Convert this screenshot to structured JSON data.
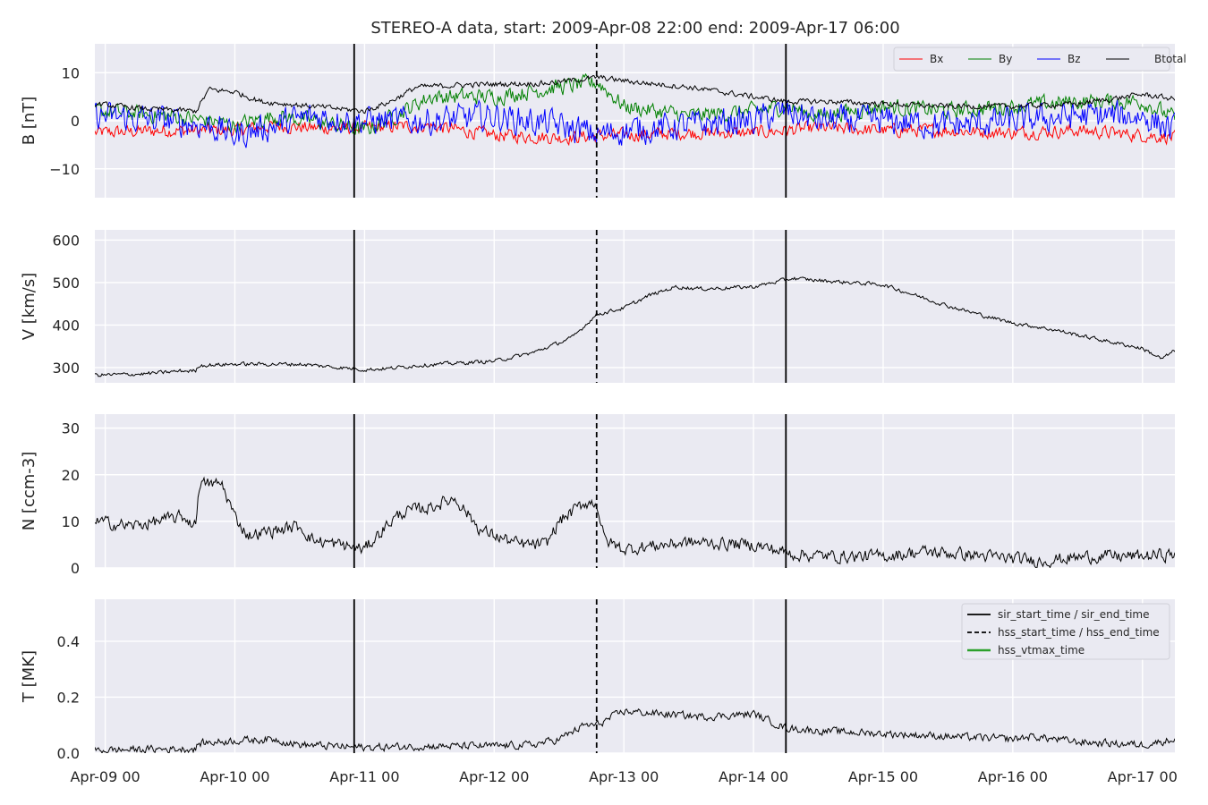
{
  "chart_data": {
    "type": "line",
    "title": "STEREO-A data, start: 2009-Apr-08 22:00  end: 2009-Apr-17 06:00",
    "x_unit": "days since 2009-Apr-09 00:00",
    "xlim": [
      -0.08,
      8.25
    ],
    "x_ticks": [
      {
        "x": 0,
        "label": "Apr-09 00"
      },
      {
        "x": 1,
        "label": "Apr-10 00"
      },
      {
        "x": 2,
        "label": "Apr-11 00"
      },
      {
        "x": 3,
        "label": "Apr-12 00"
      },
      {
        "x": 4,
        "label": "Apr-13 00"
      },
      {
        "x": 5,
        "label": "Apr-14 00"
      },
      {
        "x": 6,
        "label": "Apr-15 00"
      },
      {
        "x": 7,
        "label": "Apr-16 00"
      },
      {
        "x": 8,
        "label": "Apr-17 00"
      }
    ],
    "event_lines": [
      {
        "x": 1.92,
        "style": "solid",
        "label": "sir_start_time / sir_end_time"
      },
      {
        "x": 5.25,
        "style": "solid",
        "label": "sir_start_time / sir_end_time"
      },
      {
        "x": 3.79,
        "style": "dashed",
        "label": "hss_start_time / hss_end_time"
      }
    ],
    "panels": [
      {
        "ylabel": "B [nT]",
        "ylim": [
          -16,
          16
        ],
        "yticks": [
          {
            "v": 10,
            "label": "10"
          },
          {
            "v": 0,
            "label": "0"
          },
          {
            "v": -10,
            "label": "−10"
          }
        ],
        "legend": {
          "position": "top-right",
          "columns": 4
        },
        "series": [
          {
            "name": "Bx",
            "color": "#ff0000",
            "noise": 1.2,
            "points": [
              [
                -0.08,
                -2.5
              ],
              [
                0.5,
                -2
              ],
              [
                1,
                -2
              ],
              [
                1.3,
                -1
              ],
              [
                1.6,
                -1.5
              ],
              [
                2,
                -1.5
              ],
              [
                2.5,
                -1
              ],
              [
                3,
                -3
              ],
              [
                3.5,
                -3.5
              ],
              [
                4,
                -3
              ],
              [
                4.5,
                -2.5
              ],
              [
                5,
                -2.5
              ],
              [
                5.5,
                -1.5
              ],
              [
                6,
                -2
              ],
              [
                6.5,
                -2
              ],
              [
                7,
                -2.5
              ],
              [
                7.5,
                -2
              ],
              [
                8,
                -3
              ],
              [
                8.25,
                -3.5
              ]
            ]
          },
          {
            "name": "By",
            "color": "#008000",
            "noise": 1.5,
            "points": [
              [
                -0.08,
                2
              ],
              [
                0.5,
                1
              ],
              [
                0.8,
                0
              ],
              [
                1,
                -1
              ],
              [
                1.3,
                1
              ],
              [
                1.6,
                0
              ],
              [
                2,
                -2
              ],
              [
                2.3,
                2
              ],
              [
                2.5,
                5
              ],
              [
                3,
                5
              ],
              [
                3.5,
                7
              ],
              [
                3.8,
                8
              ],
              [
                4,
                3
              ],
              [
                4.5,
                1
              ],
              [
                5,
                2
              ],
              [
                5.25,
                3
              ],
              [
                5.5,
                1
              ],
              [
                6,
                3
              ],
              [
                6.5,
                2
              ],
              [
                7,
                3
              ],
              [
                7.5,
                4
              ],
              [
                8,
                4
              ],
              [
                8.25,
                0.5
              ]
            ]
          },
          {
            "name": "Bz",
            "color": "#0000ff",
            "noise": 2.6,
            "points": [
              [
                -0.08,
                1
              ],
              [
                0.5,
                0
              ],
              [
                0.8,
                -1
              ],
              [
                1,
                -3
              ],
              [
                1.3,
                -1
              ],
              [
                1.6,
                1
              ],
              [
                2,
                0
              ],
              [
                2.5,
                0
              ],
              [
                3,
                1
              ],
              [
                3.5,
                -1
              ],
              [
                3.8,
                -3
              ],
              [
                4,
                -2
              ],
              [
                4.5,
                -1
              ],
              [
                5,
                0
              ],
              [
                5.25,
                2
              ],
              [
                5.5,
                0
              ],
              [
                6,
                0
              ],
              [
                6.5,
                -1
              ],
              [
                7,
                0
              ],
              [
                7.5,
                1
              ],
              [
                8,
                1
              ],
              [
                8.25,
                -2
              ]
            ]
          },
          {
            "name": "Btotal",
            "color": "#000000",
            "noise": 0.5,
            "points": [
              [
                -0.08,
                3.5
              ],
              [
                0.3,
                2.5
              ],
              [
                0.7,
                2
              ],
              [
                0.8,
                6.5
              ],
              [
                1,
                6
              ],
              [
                1.2,
                4
              ],
              [
                1.6,
                3
              ],
              [
                2,
                2
              ],
              [
                2.2,
                4
              ],
              [
                2.4,
                7
              ],
              [
                2.8,
                7.5
              ],
              [
                3.4,
                7.8
              ],
              [
                3.8,
                9
              ],
              [
                4.1,
                8
              ],
              [
                4.5,
                7
              ],
              [
                5,
                5
              ],
              [
                5.25,
                4
              ],
              [
                5.6,
                4
              ],
              [
                6,
                3.5
              ],
              [
                6.5,
                3
              ],
              [
                7,
                3
              ],
              [
                7.5,
                3.5
              ],
              [
                8,
                5.5
              ],
              [
                8.25,
                4.5
              ]
            ]
          }
        ]
      },
      {
        "ylabel": "V [km/s]",
        "ylim": [
          264,
          624
        ],
        "yticks": [
          {
            "v": 300,
            "label": "300"
          },
          {
            "v": 400,
            "label": "400"
          },
          {
            "v": 500,
            "label": "500"
          },
          {
            "v": 600,
            "label": "600"
          }
        ],
        "series": [
          {
            "name": "V",
            "color": "#000000",
            "noise": 4,
            "points": [
              [
                -0.08,
                282
              ],
              [
                0.3,
                285
              ],
              [
                0.6,
                292
              ],
              [
                0.7,
                292
              ],
              [
                0.72,
                305
              ],
              [
                1,
                308
              ],
              [
                1.5,
                308
              ],
              [
                2,
                295
              ],
              [
                2.2,
                298
              ],
              [
                2.4,
                305
              ],
              [
                3,
                315
              ],
              [
                3.3,
                335
              ],
              [
                3.6,
                370
              ],
              [
                3.79,
                425
              ],
              [
                4,
                440
              ],
              [
                4.2,
                470
              ],
              [
                4.4,
                490
              ],
              [
                4.6,
                485
              ],
              [
                5,
                490
              ],
              [
                5.3,
                510
              ],
              [
                5.5,
                505
              ],
              [
                6,
                495
              ],
              [
                6.2,
                475
              ],
              [
                6.5,
                445
              ],
              [
                6.8,
                420
              ],
              [
                7,
                405
              ],
              [
                7.3,
                390
              ],
              [
                7.6,
                370
              ],
              [
                8,
                345
              ],
              [
                8.15,
                320
              ],
              [
                8.25,
                340
              ]
            ]
          }
        ]
      },
      {
        "ylabel": "N [ccm-3]",
        "ylim": [
          0,
          33
        ],
        "yticks": [
          {
            "v": 0,
            "label": "0"
          },
          {
            "v": 10,
            "label": "10"
          },
          {
            "v": 20,
            "label": "20"
          },
          {
            "v": 30,
            "label": "30"
          }
        ],
        "series": [
          {
            "name": "N",
            "color": "#000000",
            "noise": 1.2,
            "points": [
              [
                -0.08,
                10
              ],
              [
                0.2,
                9
              ],
              [
                0.4,
                10
              ],
              [
                0.6,
                11
              ],
              [
                0.7,
                9
              ],
              [
                0.72,
                18
              ],
              [
                0.9,
                18
              ],
              [
                1,
                11
              ],
              [
                1.1,
                7
              ],
              [
                1.5,
                9
              ],
              [
                1.6,
                6
              ],
              [
                1.9,
                4.5
              ],
              [
                2,
                4
              ],
              [
                2.2,
                10
              ],
              [
                2.3,
                12
              ],
              [
                2.5,
                13
              ],
              [
                2.7,
                15
              ],
              [
                2.9,
                8
              ],
              [
                3,
                7
              ],
              [
                3.2,
                5
              ],
              [
                3.4,
                5
              ],
              [
                3.5,
                10
              ],
              [
                3.7,
                14
              ],
              [
                3.79,
                14
              ],
              [
                3.85,
                6
              ],
              [
                4,
                4
              ],
              [
                4.3,
                5
              ],
              [
                4.5,
                5.5
              ],
              [
                5,
                5
              ],
              [
                5.3,
                3
              ],
              [
                5.6,
                2.5
              ],
              [
                6,
                2.5
              ],
              [
                6.3,
                3.5
              ],
              [
                6.6,
                3
              ],
              [
                7,
                2
              ],
              [
                7.2,
                1.5
              ],
              [
                7.6,
                2.5
              ],
              [
                8,
                2.5
              ],
              [
                8.25,
                3
              ]
            ]
          }
        ]
      },
      {
        "ylabel": "T [MK]",
        "ylim": [
          0,
          0.55
        ],
        "yticks": [
          {
            "v": 0,
            "label": "0.0"
          },
          {
            "v": 0.2,
            "label": "0.2"
          },
          {
            "v": 0.4,
            "label": "0.4"
          }
        ],
        "legend": {
          "position": "top-right",
          "columns": 1
        },
        "series": [
          {
            "name": "T",
            "color": "#000000",
            "noise": 0.012,
            "points": [
              [
                -0.08,
                0.01
              ],
              [
                0.5,
                0.015
              ],
              [
                0.7,
                0.015
              ],
              [
                0.72,
                0.035
              ],
              [
                1,
                0.045
              ],
              [
                1.3,
                0.05
              ],
              [
                1.5,
                0.03
              ],
              [
                2,
                0.02
              ],
              [
                2.5,
                0.025
              ],
              [
                3,
                0.025
              ],
              [
                3.3,
                0.03
              ],
              [
                3.5,
                0.05
              ],
              [
                3.7,
                0.1
              ],
              [
                3.79,
                0.1
              ],
              [
                4,
                0.15
              ],
              [
                4.3,
                0.14
              ],
              [
                4.6,
                0.13
              ],
              [
                5,
                0.14
              ],
              [
                5.25,
                0.09
              ],
              [
                5.5,
                0.08
              ],
              [
                6,
                0.07
              ],
              [
                6.5,
                0.06
              ],
              [
                7,
                0.05
              ],
              [
                7.15,
                0.06
              ],
              [
                7.5,
                0.04
              ],
              [
                8,
                0.03
              ],
              [
                8.25,
                0.05
              ]
            ]
          }
        ]
      }
    ],
    "legend_bottom": [
      {
        "label": "sir_start_time / sir_end_time",
        "color": "#000000",
        "style": "solid"
      },
      {
        "label": "hss_start_time / hss_end_time",
        "color": "#000000",
        "style": "dashed"
      },
      {
        "label": "hss_vtmax_time",
        "color": "#2ca02c",
        "style": "solid"
      }
    ]
  }
}
